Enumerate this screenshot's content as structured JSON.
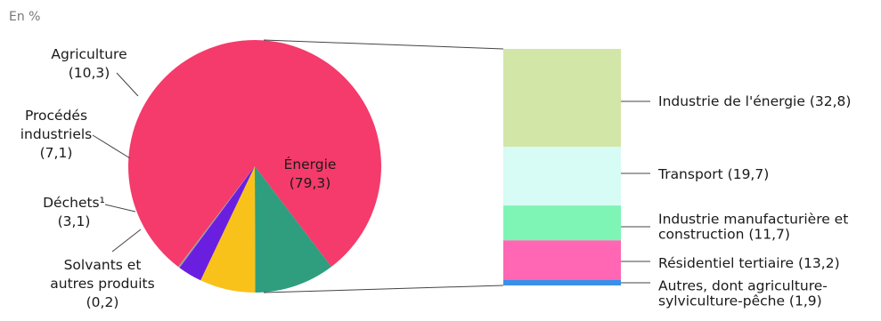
{
  "chart_data": [
    {
      "type": "pie",
      "unit_label": "En %",
      "series": [
        {
          "label_lines": [
            "Énergie",
            "(79,3)"
          ],
          "value": 79.3,
          "color": "#f43b6b"
        },
        {
          "label_lines": [
            "Agriculture",
            "(10,3)"
          ],
          "value": 10.3,
          "color": "#2e9e7e"
        },
        {
          "label_lines": [
            "Procédés",
            "industriels",
            "(7,1)"
          ],
          "value": 7.1,
          "color": "#f9c21a"
        },
        {
          "label_lines": [
            "Déchets¹",
            "(3,1)"
          ],
          "value": 3.1,
          "color": "#6a1fe0"
        },
        {
          "label_lines": [
            "Solvants et",
            "autres produits",
            "(0,2)"
          ],
          "value": 0.2,
          "color": "#9b9b9b"
        }
      ]
    },
    {
      "type": "bar",
      "stacked": true,
      "breakdown_of": "Énergie",
      "series": [
        {
          "label_lines": [
            "Industrie de l'énergie (32,8)"
          ],
          "value": 32.8,
          "color": "#d2e6a8"
        },
        {
          "label_lines": [
            "Transport (19,7)"
          ],
          "value": 19.7,
          "color": "#d7fbf5"
        },
        {
          "label_lines": [
            "Industrie manufacturière et",
            "construction (11,7)"
          ],
          "value": 11.7,
          "color": "#7ff5b5"
        },
        {
          "label_lines": [
            "Résidentiel tertiaire (13,2)"
          ],
          "value": 13.2,
          "color": "#ff66b3"
        },
        {
          "label_lines": [
            "Autres, dont agriculture-",
            "sylviculture-pêche (1,9)"
          ],
          "value": 1.9,
          "color": "#3a8fe8"
        }
      ]
    }
  ]
}
